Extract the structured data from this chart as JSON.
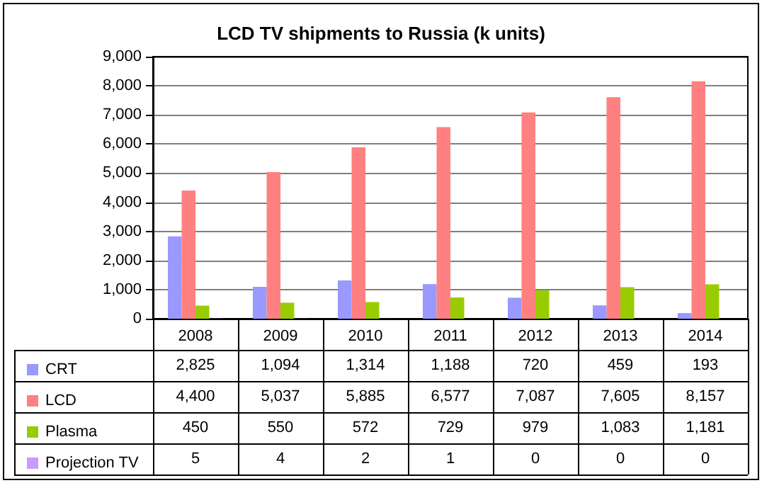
{
  "chart_data": {
    "type": "bar",
    "title": "LCD TV shipments to Russia (k units)",
    "categories": [
      "2008",
      "2009",
      "2010",
      "2011",
      "2012",
      "2013",
      "2014"
    ],
    "series": [
      {
        "name": "CRT",
        "color": "#9999ff",
        "values": [
          2825,
          1094,
          1314,
          1188,
          720,
          459,
          193
        ],
        "value_labels": [
          "2,825",
          "1,094",
          "1,314",
          "1,188",
          "720",
          "459",
          "193"
        ]
      },
      {
        "name": "LCD",
        "color": "#ff8080",
        "values": [
          4400,
          5037,
          5885,
          6577,
          7087,
          7605,
          8157
        ],
        "value_labels": [
          "4,400",
          "5,037",
          "5,885",
          "6,577",
          "7,087",
          "7,605",
          "8,157"
        ]
      },
      {
        "name": "Plasma",
        "color": "#99cc00",
        "values": [
          450,
          550,
          572,
          729,
          979,
          1083,
          1181
        ],
        "value_labels": [
          "450",
          "550",
          "572",
          "729",
          "979",
          "1,083",
          "1,181"
        ]
      },
      {
        "name": "Projection TV",
        "color": "#cc99ff",
        "values": [
          5,
          4,
          2,
          1,
          0,
          0,
          0
        ],
        "value_labels": [
          "5",
          "4",
          "2",
          "1",
          "0",
          "0",
          "0"
        ]
      }
    ],
    "ylim": [
      0,
      9000
    ],
    "yticks": [
      {
        "value": 0,
        "label": "0"
      },
      {
        "value": 1000,
        "label": "1,000"
      },
      {
        "value": 2000,
        "label": "2,000"
      },
      {
        "value": 3000,
        "label": "3,000"
      },
      {
        "value": 4000,
        "label": "4,000"
      },
      {
        "value": 5000,
        "label": "5,000"
      },
      {
        "value": 6000,
        "label": "6,000"
      },
      {
        "value": 7000,
        "label": "7,000"
      },
      {
        "value": 8000,
        "label": "8,000"
      },
      {
        "value": 9000,
        "label": "9,000"
      }
    ],
    "grid": "y",
    "legend": "bottom left"
  }
}
